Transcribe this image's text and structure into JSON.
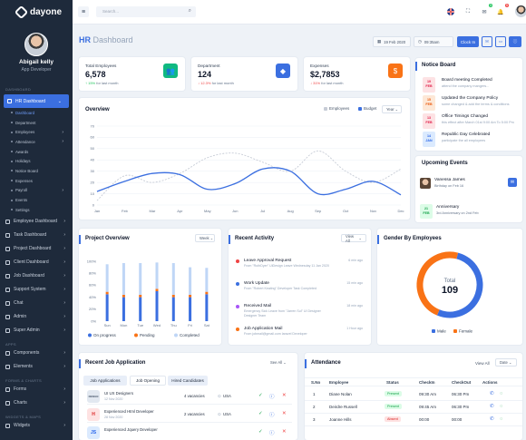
{
  "app": {
    "brand": "dayone"
  },
  "profile": {
    "name": "Abigail kelly",
    "role": "App Developer"
  },
  "sidebar": {
    "dashboard_group": "DASHBOARD",
    "items": [
      {
        "label": "Employee Dashboard"
      },
      {
        "label": "Task Dashboard"
      },
      {
        "label": "Project Dashboard"
      },
      {
        "label": "Client Dashboard"
      },
      {
        "label": "Job Dashboard"
      },
      {
        "label": "Support System"
      },
      {
        "label": "Chat"
      },
      {
        "label": "Admin"
      },
      {
        "label": "Super Admin"
      }
    ],
    "hr": {
      "label": "HR Dashboard",
      "subs": [
        "Dashboard",
        "Department",
        "Employees",
        "Attendance",
        "Awards",
        "Holidays",
        "Notice Board",
        "Expenses",
        "Payroll",
        "Events",
        "Settings"
      ]
    },
    "apps_group": "APPS",
    "apps": [
      {
        "label": "Components"
      },
      {
        "label": "Elements"
      }
    ],
    "forms_group": "FORMS & CHARTS",
    "forms": [
      {
        "label": "Forms"
      },
      {
        "label": "Charts"
      }
    ],
    "widgets_group": "WIDGETS & MAPS",
    "widgets": [
      {
        "label": "Widgets"
      }
    ]
  },
  "topbar": {
    "search_placeholder": "Search...",
    "notif_count": "5",
    "mail_count": "3"
  },
  "header": {
    "title_main": "HR",
    "title_rest": "Dashboard",
    "date": "19 Feb 2020",
    "time": "09:35am",
    "clock_in": "Clock In"
  },
  "stats": [
    {
      "label": "Total Employees",
      "value": "6,578",
      "change": "↑ 15%",
      "change_note": "for last month",
      "color": "#22c55e"
    },
    {
      "label": "Department",
      "value": "124",
      "change": "↓ 12.3%",
      "change_note": "for last month",
      "color": "#ef4444"
    },
    {
      "label": "Expenses",
      "value": "$2,7853",
      "change": "↓ 31%",
      "change_note": "for last month",
      "color": "#ef4444"
    }
  ],
  "overview": {
    "title": "Overview",
    "legend_employees": "Employees",
    "legend_budget": "Budget",
    "range": "Year"
  },
  "chart_data": [
    {
      "type": "line",
      "title": "Overview",
      "categories": [
        "Jan",
        "Feb",
        "Mar",
        "Apr",
        "May",
        "Jun",
        "Jul",
        "Aug",
        "Sep",
        "Oct",
        "Nov",
        "Dec"
      ],
      "yticks": [
        0,
        10,
        20,
        30,
        40,
        50,
        60,
        70
      ],
      "ylim": [
        0,
        70
      ],
      "series": [
        {
          "name": "Employees",
          "color": "#c7ccd6",
          "dashed": true,
          "values": [
            4,
            26,
            20,
            28,
            42,
            46,
            38,
            30,
            48,
            30,
            20,
            32
          ]
        },
        {
          "name": "Budget",
          "color": "#3b6fe0",
          "values": [
            12,
            21,
            28,
            27,
            14,
            19,
            32,
            30,
            10,
            14,
            21,
            9
          ]
        }
      ]
    },
    {
      "type": "bar",
      "title": "Project Overview",
      "categories": [
        "Sun",
        "Mon",
        "Tue",
        "Wed",
        "Thu",
        "Fri",
        "Sat"
      ],
      "yticks": [
        "0%",
        "20%",
        "40%",
        "60%",
        "80%",
        "100%"
      ],
      "ylim": [
        0,
        100
      ],
      "series": [
        {
          "name": "On progress",
          "color": "#3b6fe0",
          "values": [
            45,
            40,
            40,
            50,
            40,
            40,
            45
          ]
        },
        {
          "name": "Pending",
          "color": "#f97316",
          "values": [
            4,
            4,
            4,
            4,
            4,
            4,
            4
          ]
        },
        {
          "name": "Completed",
          "color": "#bfd6f6",
          "values": [
            46,
            53,
            53,
            44,
            53,
            46,
            40
          ]
        }
      ]
    },
    {
      "type": "pie",
      "title": "Gender By Employees",
      "center_label": "Total",
      "center_value": "109",
      "series": [
        {
          "name": "Male",
          "color": "#3b6fe0",
          "value": 57
        },
        {
          "name": "Female",
          "color": "#f97316",
          "value": 52
        }
      ]
    }
  ],
  "project": {
    "title": "Project Overview",
    "range": "Week"
  },
  "notices": {
    "title": "Notice Board",
    "items": [
      {
        "day": "19",
        "month": "FEB",
        "title": "Board meeting Completed",
        "sub": "attend the company mangers...",
        "bg": "#fde2e4",
        "fg": "#e11d48"
      },
      {
        "day": "15",
        "month": "FEB",
        "title": "Updated the Company Policy",
        "sub": "some changed & add the terms & conditions",
        "bg": "#fde8d7",
        "fg": "#ea580c"
      },
      {
        "day": "13",
        "month": "FEB",
        "title": "Office Timings Changed",
        "sub": "this effect after March 01st 9:00 Am To 5:00 Pm",
        "bg": "#fde2e4",
        "fg": "#e11d48"
      },
      {
        "day": "14",
        "month": "JAN",
        "title": "Republic Day Celebrated",
        "sub": "participate the all employees",
        "bg": "#dbeafe",
        "fg": "#2563eb"
      }
    ]
  },
  "events": {
    "title": "Upcoming Events",
    "birthday_name": "Vanessa James",
    "birthday_note": "Birthday on Feb 16",
    "anniv_day": "21",
    "anniv_month": "FEB",
    "anniv_title": "Anniversary",
    "anniv_note": "3rd Anniversary on 2nd Feb"
  },
  "activity": {
    "title": "Recent Activity",
    "view": "View All",
    "items": [
      {
        "title": "Leave Approval Request",
        "sub": "From \"RuthDyer\" UiDesign Leave Wednesday 11 Jan 2020",
        "time": "6 min ago",
        "color": "#ef4444"
      },
      {
        "title": "Work Update",
        "sub": "From \"Robert Keating\" Developer Task Completed",
        "time": "15 min ago",
        "color": "#3b6fe0"
      },
      {
        "title": "Received Mail",
        "sub": "Emergency Sick Leave from \"Jarren Sul\" UI Designer Designer Team",
        "time": "18 min ago",
        "color": "#a855f7"
      },
      {
        "title": "Job Application Mail",
        "sub": "From jobmail@gmail.com laravel Developer",
        "time": "1 Hour ago",
        "color": "#f97316"
      }
    ]
  },
  "gender": {
    "title": "Gender By Employees",
    "male": "Male",
    "female": "Female"
  },
  "jobs": {
    "title": "Recent Job Application",
    "view": "See All",
    "tabs": [
      "Job Applications",
      "Job Opening",
      "Hired Candidates"
    ],
    "rows": [
      {
        "logo": "DESIGN",
        "title": "UI UX Designers",
        "date": "12 Nov 2020",
        "vacancies": "4 vacancies",
        "location": "USA",
        "logo_bg": "#e2e8f0",
        "logo_fg": "#475569"
      },
      {
        "logo": "H",
        "title": "Experienced Html Developer",
        "date": "28 Nov 2020",
        "vacancies": "2 vacancies",
        "location": "USA",
        "logo_bg": "#fee2e2",
        "logo_fg": "#dc2626"
      },
      {
        "logo": "JS",
        "title": "Experienced Jquery Developer",
        "date": "",
        "vacancies": "",
        "location": "",
        "logo_bg": "#dbeafe",
        "logo_fg": "#2563eb"
      }
    ]
  },
  "attendance": {
    "title": "Attendance",
    "view": "View All",
    "date_sel": "Date",
    "headers": [
      "S.No",
      "Employee",
      "Status",
      "CheckIn",
      "CheckOut",
      "Actions"
    ],
    "rows": [
      {
        "no": "1",
        "name": "Diane Nolan",
        "status": "Present",
        "in": "09:30 Am",
        "out": "06:30 Pm",
        "bg": "#dcfce7",
        "fg": "#16a34a"
      },
      {
        "no": "2",
        "name": "Deirdre Russell",
        "status": "Present",
        "in": "09:45 Am",
        "out": "06:30 Pm",
        "bg": "#dcfce7",
        "fg": "#16a34a"
      },
      {
        "no": "3",
        "name": "Joanne Hills",
        "status": "Absent",
        "in": "00:00",
        "out": "00:00",
        "bg": "#fee2e2",
        "fg": "#dc2626"
      }
    ]
  }
}
